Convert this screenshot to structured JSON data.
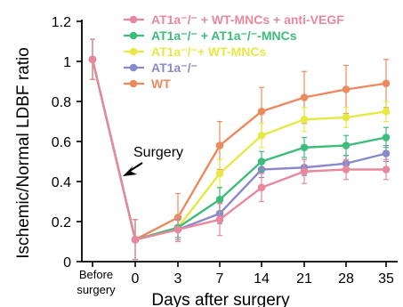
{
  "chart_data": {
    "type": "line",
    "ylabel": "Ischemic/Normal LDBF ratio",
    "xlabel": "Days after surgery",
    "categories": [
      "Before surgery",
      "0",
      "3",
      "7",
      "14",
      "21",
      "28",
      "35"
    ],
    "category_lines": [
      [
        "Before",
        "surgery"
      ],
      [
        "0"
      ],
      [
        "3"
      ],
      [
        "7"
      ],
      [
        "14"
      ],
      [
        "21"
      ],
      [
        "28"
      ],
      [
        "35"
      ]
    ],
    "ylim": [
      0,
      1.2
    ],
    "yticks": [
      "0",
      "0.2",
      "0.4",
      "0.6",
      "0.8",
      "1",
      "1.2"
    ],
    "grid": false,
    "legend_position": "top-right",
    "annotation": "Surgery",
    "series": [
      {
        "name": "AT1a⁻/⁻ + WT-MNCs + anti-VEGF",
        "color": "#e8889f",
        "values": [
          1.01,
          0.11,
          0.16,
          0.21,
          0.37,
          0.45,
          0.46,
          0.46
        ],
        "errors": [
          0.1,
          0.1,
          0.06,
          0.08,
          0.07,
          0.06,
          0.05,
          0.05
        ]
      },
      {
        "name": "AT1a⁻/⁻ + AT1a⁻/⁻-MNCs",
        "color": "#3dbc7c",
        "values": [
          1.01,
          0.11,
          0.17,
          0.31,
          0.5,
          0.57,
          0.58,
          0.62
        ],
        "errors": [
          0.1,
          0.1,
          0.05,
          0.06,
          0.05,
          0.05,
          0.05,
          0.05
        ]
      },
      {
        "name": "AT1a⁻/⁻+ WT-MNCs",
        "color": "#e8e845",
        "values": [
          1.01,
          0.11,
          0.17,
          0.44,
          0.63,
          0.71,
          0.72,
          0.75
        ],
        "errors": [
          0.1,
          0.1,
          0.05,
          0.07,
          0.06,
          0.06,
          0.05,
          0.05
        ]
      },
      {
        "name": "AT1a⁻/⁻",
        "color": "#8a88cc",
        "values": [
          1.01,
          0.11,
          0.16,
          0.24,
          0.46,
          0.47,
          0.49,
          0.54
        ],
        "errors": [
          0.1,
          0.1,
          0.05,
          0.05,
          0.04,
          0.04,
          0.04,
          0.04
        ]
      },
      {
        "name": "WT",
        "color": "#ec8a5e",
        "values": [
          1.01,
          0.11,
          0.22,
          0.58,
          0.75,
          0.82,
          0.86,
          0.89
        ],
        "errors": [
          0.1,
          0.1,
          0.12,
          0.12,
          0.12,
          0.13,
          0.12,
          0.12
        ]
      }
    ]
  }
}
